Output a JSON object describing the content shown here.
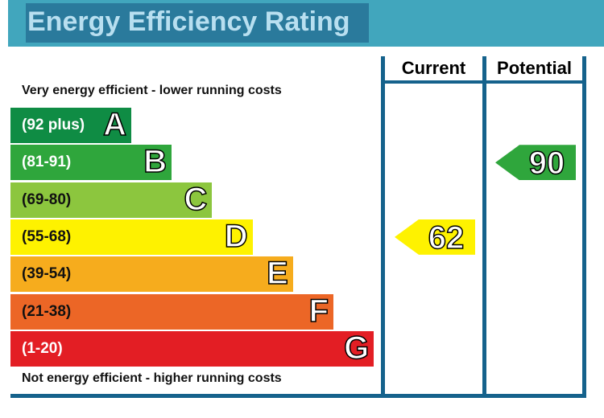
{
  "title": "Energy Efficiency Rating",
  "columns": {
    "current": "Current",
    "potential": "Potential"
  },
  "captions": {
    "top": "Very energy efficient - lower running costs",
    "bottom": "Not energy efficient - higher running costs"
  },
  "chart_data": {
    "type": "bar",
    "categories": [
      "A",
      "B",
      "C",
      "D",
      "E",
      "F",
      "G"
    ],
    "ranges": [
      "(92 plus)",
      "(81-91)",
      "(69-80)",
      "(55-68)",
      "(39-54)",
      "(21-38)",
      "(1-20)"
    ],
    "colors": [
      "#0f8c44",
      "#2fa63c",
      "#8cc63e",
      "#fef200",
      "#f6ac1d",
      "#ec6626",
      "#e31e24"
    ],
    "range_text_colors": [
      "#ffffff",
      "#ffffff",
      "#111111",
      "#111111",
      "#111111",
      "#111111",
      "#ffffff"
    ],
    "current": {
      "value": 62,
      "band": "D",
      "color": "#fef200"
    },
    "potential": {
      "value": 90,
      "band": "B",
      "color": "#2fa63c"
    }
  }
}
